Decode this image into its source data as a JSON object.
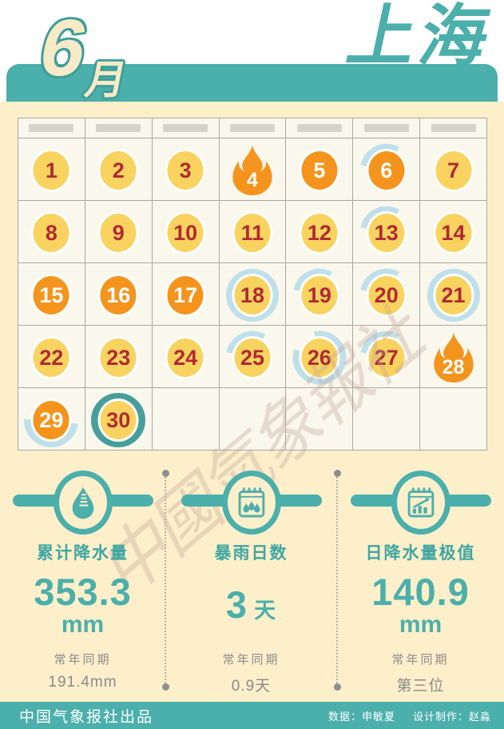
{
  "header": {
    "month_number": "6",
    "month_suffix": "月",
    "city": "上海"
  },
  "calendar": {
    "weekday_placeholder_bars": 7,
    "empty_trailing_cells": 5,
    "days": [
      {
        "n": "1",
        "circle": "yellow",
        "arc": "none"
      },
      {
        "n": "2",
        "circle": "yellow",
        "arc": "none"
      },
      {
        "n": "3",
        "circle": "yellow",
        "arc": "none"
      },
      {
        "n": "4",
        "circle": "flame",
        "arc": "none"
      },
      {
        "n": "5",
        "circle": "orange",
        "arc": "none"
      },
      {
        "n": "6",
        "circle": "orange",
        "arc": "quarter"
      },
      {
        "n": "7",
        "circle": "yellow",
        "arc": "none"
      },
      {
        "n": "8",
        "circle": "yellow",
        "arc": "none"
      },
      {
        "n": "9",
        "circle": "yellow",
        "arc": "none"
      },
      {
        "n": "10",
        "circle": "yellow",
        "arc": "none"
      },
      {
        "n": "11",
        "circle": "yellow",
        "arc": "none"
      },
      {
        "n": "12",
        "circle": "yellow",
        "arc": "none"
      },
      {
        "n": "13",
        "circle": "yellow",
        "arc": "quarter"
      },
      {
        "n": "14",
        "circle": "yellow",
        "arc": "none"
      },
      {
        "n": "15",
        "circle": "orange",
        "arc": "none"
      },
      {
        "n": "16",
        "circle": "orange",
        "arc": "none"
      },
      {
        "n": "17",
        "circle": "orange",
        "arc": "none"
      },
      {
        "n": "18",
        "circle": "yellow",
        "arc": "ring"
      },
      {
        "n": "19",
        "circle": "yellow",
        "arc": "quarter"
      },
      {
        "n": "20",
        "circle": "yellow",
        "arc": "quarter"
      },
      {
        "n": "21",
        "circle": "yellow",
        "arc": "ring"
      },
      {
        "n": "22",
        "circle": "yellow",
        "arc": "none"
      },
      {
        "n": "23",
        "circle": "yellow",
        "arc": "none"
      },
      {
        "n": "24",
        "circle": "yellow",
        "arc": "none"
      },
      {
        "n": "25",
        "circle": "yellow",
        "arc": "quarter"
      },
      {
        "n": "26",
        "circle": "yellow",
        "arc": "ring-gap"
      },
      {
        "n": "27",
        "circle": "yellow",
        "arc": "quarter"
      },
      {
        "n": "28",
        "circle": "flame",
        "arc": "none"
      },
      {
        "n": "29",
        "circle": "orange",
        "arc": "half-bottom"
      },
      {
        "n": "30",
        "circle": "yellow",
        "arc": "ring-thick"
      }
    ]
  },
  "stats": [
    {
      "icon": "rain-gauge-icon",
      "label": "累计降水量",
      "value": "353.3",
      "unit": "mm",
      "unit_inline": false,
      "normal_label": "常年同期",
      "normal_value": "191.4mm"
    },
    {
      "icon": "calendar-rain-icon",
      "label": "暴雨日数",
      "value": "3",
      "unit": "天",
      "unit_inline": true,
      "normal_label": "常年同期",
      "normal_value": "0.9天"
    },
    {
      "icon": "calendar-chart-icon",
      "label": "日降水量极值",
      "value": "140.9",
      "unit": "mm",
      "unit_inline": false,
      "normal_label": "常年同期",
      "normal_value": "第三位"
    }
  ],
  "watermark": "中國氣象報社",
  "footer": {
    "brand": "中国气象报社出品",
    "data_credit": "数据：申敏夏",
    "design_credit": "设计制作：赵淼"
  },
  "colors": {
    "teal": "#4bafab",
    "teal_dark": "#3f9e9a",
    "cream": "#fcefca",
    "cell_bg": "#faf7ec",
    "grid_line": "#aaa89e",
    "day_yellow": "#f9d35f",
    "day_orange": "#f5941d",
    "day_number_red": "#b02a33",
    "arc_pale_blue": "#bfe0ea",
    "ring_thick_teal": "#479f9b",
    "weekday_bar_gray": "#d6d3c9",
    "normal_text_gray": "#8c8c8c"
  },
  "chart_data": {
    "type": "table",
    "title": "上海 6月 降水日历",
    "calendar_markers": {
      "hot_flame_days": [
        4,
        28
      ],
      "orange_circle_days": [
        5,
        6,
        15,
        16,
        17,
        29
      ],
      "rain_arc_quarter_days": [
        6,
        13,
        19,
        20,
        25,
        27
      ],
      "rain_ring_full_days": [
        18,
        21
      ],
      "rain_ring_large_gap_day": 26,
      "rain_half_bottom_day": 29,
      "rain_ring_thick_day": 30
    },
    "stats": [
      {
        "label": "累计降水量",
        "value": 353.3,
        "unit": "mm",
        "normal_period": "191.4mm"
      },
      {
        "label": "暴雨日数",
        "value": 3,
        "unit": "天",
        "normal_period": "0.9天"
      },
      {
        "label": "日降水量极值",
        "value": 140.9,
        "unit": "mm",
        "normal_period": "第三位"
      }
    ]
  }
}
